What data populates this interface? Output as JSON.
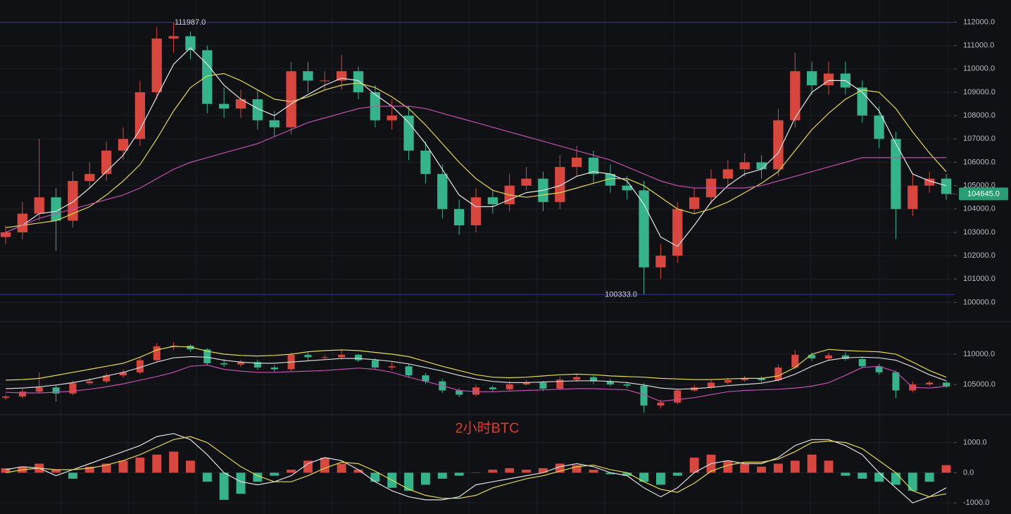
{
  "chart_data": [
    {
      "type": "candlestick",
      "up_color": "#d9463e",
      "down_color": "#35b38a",
      "grid": true,
      "ylim": [
        99200,
        112950
      ],
      "yticks": [
        {
          "value": 100000,
          "label": "100000.0"
        },
        {
          "value": 101000,
          "label": "101000.0"
        },
        {
          "value": 102000,
          "label": "102000.0"
        },
        {
          "value": 103000,
          "label": "103000.0"
        },
        {
          "value": 104000,
          "label": "104000.0"
        },
        {
          "value": 105000,
          "label": "105000.0"
        },
        {
          "value": 106000,
          "label": "106000.0"
        },
        {
          "value": 107000,
          "label": "107000.0"
        },
        {
          "value": 108000,
          "label": "108000.0"
        },
        {
          "value": 109000,
          "label": "109000.0"
        },
        {
          "value": 110000,
          "label": "110000.0"
        },
        {
          "value": 111000,
          "label": "111000.0"
        },
        {
          "value": 112000,
          "label": "112000.0"
        }
      ],
      "open": [
        102800,
        103000,
        103800,
        104500,
        103500,
        105200,
        105500,
        106500,
        107000,
        109000,
        111300,
        111400,
        110800,
        108500,
        108300,
        108700,
        107800,
        107500,
        109900,
        109500,
        109500,
        109900,
        109000,
        107800,
        108000,
        106500,
        105500,
        104000,
        103300,
        104500,
        104200,
        105000,
        105300,
        104300,
        105800,
        106200,
        105500,
        105000,
        104800,
        101500,
        102000,
        104000,
        104500,
        105300,
        105700,
        106000,
        105700,
        107800,
        109900,
        109300,
        109800,
        109200,
        108000,
        107000,
        104000,
        105000,
        105300
      ],
      "high": [
        103300,
        104300,
        107000,
        104900,
        105600,
        106000,
        106900,
        107500,
        109500,
        111800,
        111987,
        111600,
        111000,
        109200,
        109100,
        109100,
        108200,
        110300,
        110300,
        109900,
        110600,
        110100,
        109300,
        108700,
        108400,
        106900,
        105900,
        104400,
        104900,
        104800,
        105500,
        105800,
        105600,
        106300,
        106700,
        106500,
        105900,
        105400,
        105200,
        102500,
        104300,
        104900,
        105700,
        106100,
        106400,
        106300,
        108300,
        110700,
        110300,
        110300,
        110300,
        109500,
        108400,
        107300,
        105500,
        105600,
        105500
      ],
      "low": [
        102500,
        102700,
        103500,
        102200,
        103200,
        104900,
        105200,
        106100,
        106700,
        108700,
        110700,
        110400,
        108100,
        107900,
        107900,
        107400,
        107100,
        107200,
        109000,
        109100,
        109100,
        108700,
        107500,
        107400,
        106100,
        105100,
        103600,
        102900,
        103000,
        103800,
        103900,
        104800,
        103900,
        104000,
        105400,
        105100,
        104700,
        104400,
        100333,
        101000,
        101700,
        103800,
        104200,
        105000,
        105400,
        105300,
        105400,
        107500,
        108900,
        108900,
        108900,
        107700,
        106600,
        102700,
        103700,
        104700,
        104400
      ],
      "close": [
        103000,
        103800,
        104500,
        103500,
        105200,
        105500,
        106500,
        107000,
        109000,
        111300,
        111400,
        110800,
        108500,
        108300,
        108700,
        107800,
        107500,
        109900,
        109500,
        109500,
        109900,
        109000,
        107800,
        108000,
        106500,
        105500,
        104000,
        103300,
        104500,
        104200,
        105000,
        105300,
        104300,
        105800,
        106200,
        105500,
        105000,
        104800,
        101500,
        102000,
        104000,
        104500,
        105300,
        105700,
        106000,
        105700,
        107800,
        109900,
        109300,
        109800,
        109200,
        108000,
        107000,
        104000,
        105000,
        105300,
        104645
      ],
      "lines": [
        {
          "color": "#e8e8e8",
          "values": [
            103000,
            103300,
            103800,
            103900,
            104300,
            104900,
            105600,
            106300,
            107400,
            108800,
            110200,
            110900,
            110200,
            109300,
            108700,
            108300,
            108000,
            108500,
            108900,
            109300,
            109600,
            109500,
            108900,
            108400,
            107700,
            106800,
            105700,
            104600,
            104100,
            104100,
            104400,
            104700,
            104800,
            105000,
            105400,
            105600,
            105500,
            105200,
            104200,
            102800,
            102400,
            103300,
            104300,
            105000,
            105500,
            105700,
            106400,
            107900,
            109000,
            109500,
            109500,
            109000,
            108200,
            106800,
            105500,
            105200,
            105000
          ]
        },
        {
          "color": "#e6d94a",
          "values": [
            103200,
            103300,
            103400,
            103500,
            103800,
            104100,
            104600,
            105200,
            105900,
            107000,
            108200,
            109200,
            109700,
            109800,
            109500,
            109100,
            108700,
            108600,
            108800,
            109100,
            109300,
            109400,
            109200,
            108800,
            108300,
            107600,
            106800,
            106000,
            105300,
            104800,
            104600,
            104500,
            104600,
            104700,
            104900,
            105100,
            105300,
            105300,
            105000,
            104500,
            104000,
            103800,
            104000,
            104300,
            104700,
            105100,
            105600,
            106500,
            107400,
            108100,
            108700,
            109100,
            109000,
            108300,
            107300,
            106400,
            105600
          ]
        },
        {
          "color": "#c24fb0",
          "values": [
            103000,
            103300,
            103600,
            103800,
            104000,
            104200,
            104400,
            104600,
            104900,
            105300,
            105700,
            106000,
            106200,
            106400,
            106600,
            106800,
            107100,
            107400,
            107700,
            107900,
            108100,
            108300,
            108400,
            108400,
            108400,
            108300,
            108100,
            107900,
            107700,
            107500,
            107300,
            107100,
            106900,
            106700,
            106500,
            106300,
            106100,
            105800,
            105500,
            105200,
            105000,
            104900,
            104900,
            104900,
            104900,
            105000,
            105200,
            105400,
            105600,
            105800,
            106000,
            106200,
            106200,
            106200,
            106200,
            106200,
            106200
          ]
        }
      ],
      "annotations": [
        {
          "value": 111987,
          "label": "111987.0"
        },
        {
          "value": 100333,
          "label": "100333.0"
        }
      ],
      "last_price": {
        "value": 104645,
        "label": "104645.0"
      }
    },
    {
      "type": "band",
      "ylim": [
        100100,
        115250
      ],
      "yticks": [
        {
          "value": 105000,
          "label": "105000.0"
        },
        {
          "value": 110000,
          "label": "110000.0"
        }
      ],
      "lines": [
        {
          "color": "#e6d94a",
          "values": [
            105700,
            105800,
            106000,
            106500,
            107000,
            107500,
            108000,
            108500,
            109500,
            110700,
            111300,
            111200,
            110500,
            110000,
            109800,
            109700,
            109800,
            110000,
            110400,
            110600,
            110700,
            110600,
            110300,
            110000,
            109600,
            108800,
            108000,
            107300,
            106600,
            106200,
            106100,
            106200,
            106400,
            106600,
            106700,
            106600,
            106400,
            106300,
            106200,
            106000,
            105900,
            105800,
            105800,
            105900,
            106000,
            106000,
            106400,
            107800,
            110000,
            110800,
            110600,
            110500,
            110400,
            110000,
            108700,
            107300,
            106200
          ]
        },
        {
          "color": "#d8d8d8",
          "values": [
            104300,
            104400,
            104600,
            104900,
            105300,
            105800,
            106400,
            107000,
            107800,
            108700,
            109400,
            109600,
            109500,
            109000,
            108700,
            108500,
            108500,
            108700,
            108900,
            109100,
            109300,
            109300,
            109100,
            108800,
            108400,
            107800,
            107200,
            106500,
            105900,
            105500,
            105300,
            105300,
            105400,
            105500,
            105600,
            105600,
            105500,
            105300,
            104900,
            104400,
            104200,
            104300,
            104500,
            104800,
            105000,
            105200,
            105700,
            106700,
            108000,
            109000,
            109400,
            109500,
            109400,
            109000,
            107900,
            106600,
            105600
          ]
        },
        {
          "color": "#c24fb0",
          "values": [
            103700,
            103600,
            103600,
            103700,
            103900,
            104200,
            104600,
            105100,
            105700,
            106300,
            107000,
            108000,
            108200,
            107500,
            107200,
            107000,
            107000,
            107100,
            107200,
            107300,
            107500,
            107700,
            107500,
            107000,
            106200,
            105500,
            104800,
            104000,
            103800,
            103800,
            103900,
            104000,
            104100,
            104200,
            104300,
            104300,
            104200,
            104100,
            103300,
            102200,
            102500,
            102800,
            103300,
            103800,
            104000,
            104100,
            104200,
            104400,
            104700,
            105300,
            106500,
            107800,
            108000,
            107100,
            104500,
            104400,
            104700
          ]
        }
      ]
    },
    {
      "type": "macd",
      "title": "2小时BTC",
      "ylim": [
        -1370,
        1900
      ],
      "yticks": [
        {
          "value": 1000,
          "label": "1000.0"
        },
        {
          "value": 0,
          "label": "0.0"
        },
        {
          "value": -1000,
          "label": "-1000.0"
        }
      ],
      "values": [
        150,
        200,
        300,
        100,
        -200,
        200,
        300,
        400,
        500,
        600,
        700,
        400,
        -300,
        -900,
        -700,
        -300,
        -100,
        100,
        400,
        500,
        300,
        100,
        -300,
        -500,
        -600,
        -400,
        -200,
        -100,
        0,
        100,
        150,
        100,
        150,
        300,
        250,
        100,
        -50,
        -100,
        -300,
        -400,
        -100,
        500,
        600,
        400,
        300,
        200,
        300,
        400,
        600,
        400,
        -100,
        -200,
        -300,
        -400,
        -600,
        -300,
        250
      ],
      "lines": [
        {
          "color": "#e0e0e0",
          "values": [
            100,
            200,
            150,
            -100,
            100,
            300,
            500,
            700,
            900,
            1200,
            1300,
            1100,
            600,
            0,
            -300,
            -400,
            -300,
            -100,
            300,
            500,
            400,
            100,
            -300,
            -600,
            -800,
            -900,
            -900,
            -800,
            -400,
            -300,
            -200,
            -100,
            0,
            200,
            300,
            200,
            0,
            -100,
            -500,
            -800,
            -500,
            0,
            300,
            400,
            300,
            300,
            500,
            900,
            1100,
            1100,
            900,
            600,
            0,
            -500,
            -1000,
            -800,
            -500
          ]
        },
        {
          "color": "#e6d94a",
          "values": [
            0,
            100,
            150,
            100,
            100,
            150,
            250,
            400,
            600,
            850,
            1100,
            1200,
            1000,
            600,
            200,
            -100,
            -300,
            -300,
            -100,
            150,
            350,
            300,
            50,
            -250,
            -550,
            -750,
            -850,
            -850,
            -750,
            -500,
            -350,
            -200,
            -100,
            50,
            200,
            250,
            100,
            0,
            -300,
            -550,
            -650,
            -350,
            50,
            250,
            350,
            350,
            450,
            700,
            1000,
            1050,
            1000,
            800,
            400,
            0,
            -600,
            -800,
            -700
          ]
        }
      ]
    }
  ]
}
